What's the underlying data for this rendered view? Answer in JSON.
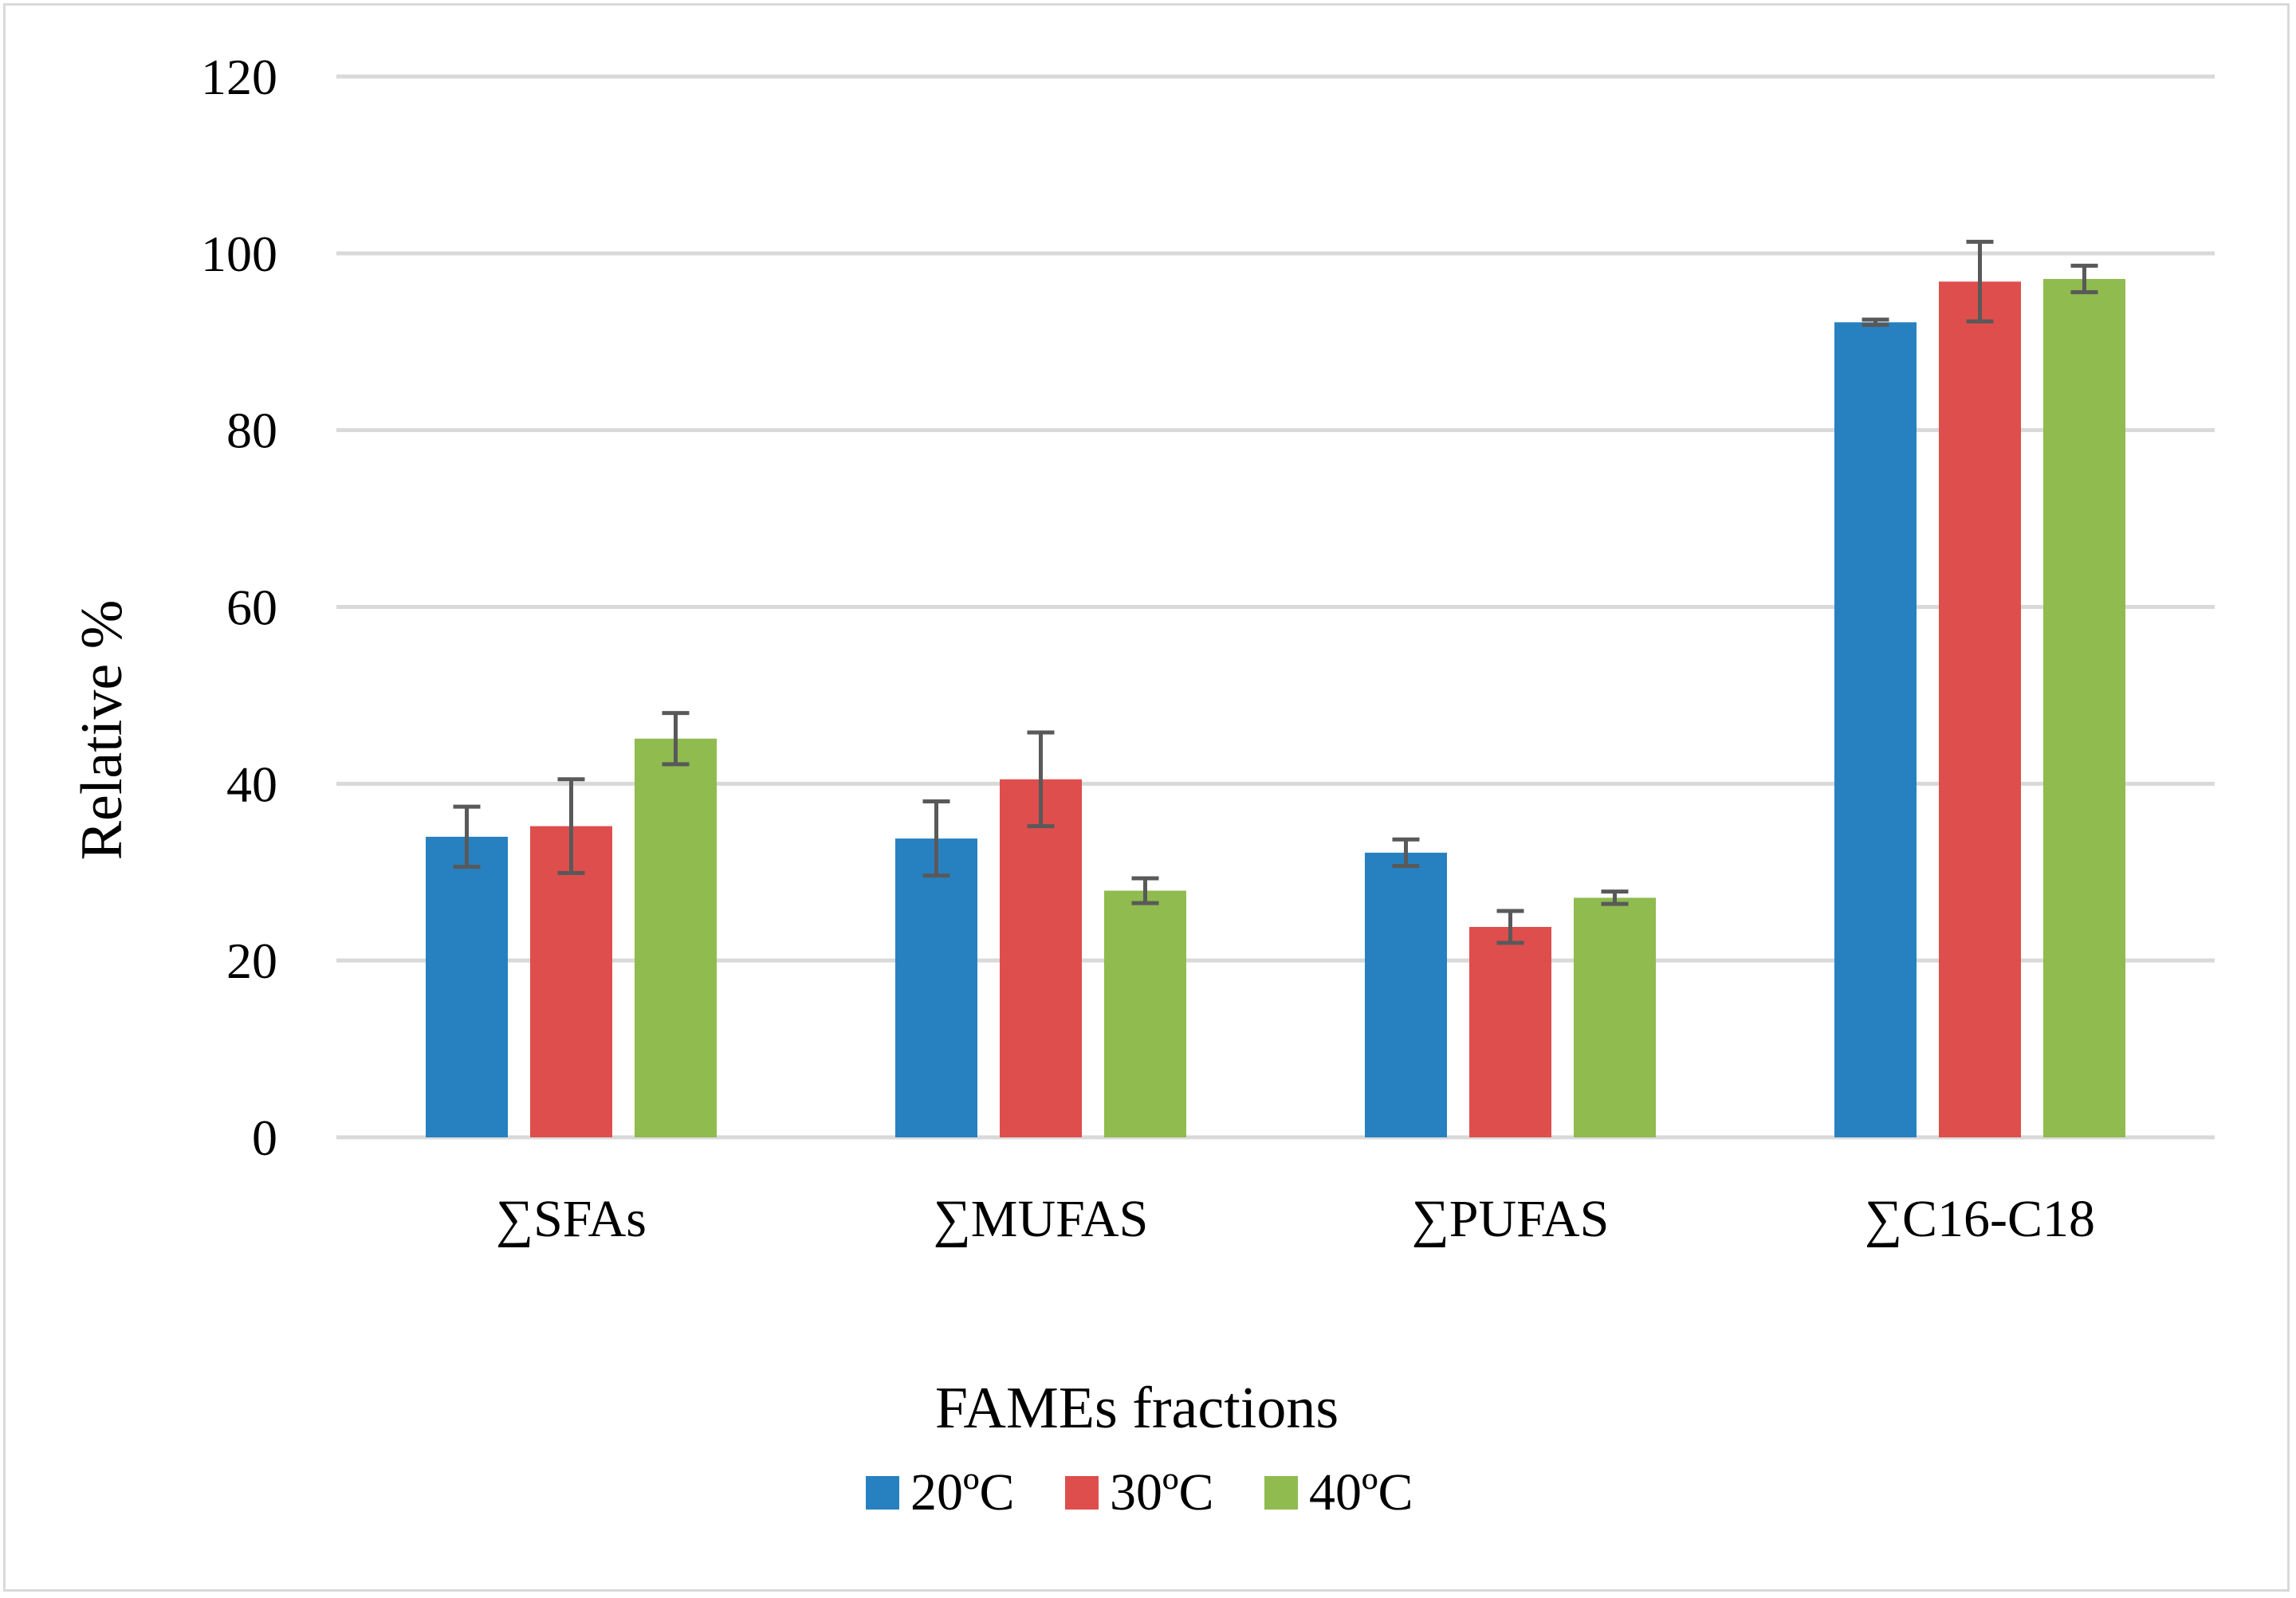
{
  "chart_data": {
    "type": "bar",
    "title": "",
    "xlabel": "FAMEs fractions",
    "ylabel": "Relative %",
    "ylim": [
      0,
      120
    ],
    "yticks": [
      0,
      20,
      40,
      60,
      80,
      100,
      120
    ],
    "grid": true,
    "legend_position": "bottom",
    "categories": [
      "∑SFAs",
      "∑MUFAS",
      "∑PUFAS",
      "∑C16-C18"
    ],
    "series": [
      {
        "name": "20ºC",
        "color": "#2781c0",
        "values": [
          34.0,
          33.8,
          32.2,
          92.2
        ],
        "errors": [
          3.4,
          4.2,
          1.5,
          0.3
        ]
      },
      {
        "name": "30ºC",
        "color": "#de4e4c",
        "values": [
          35.2,
          40.5,
          23.8,
          96.8
        ],
        "errors": [
          5.3,
          5.3,
          1.8,
          4.5
        ]
      },
      {
        "name": "40ºC",
        "color": "#8fbb4f",
        "values": [
          45.1,
          27.9,
          27.1,
          97.1
        ],
        "errors": [
          2.9,
          1.4,
          0.7,
          1.5
        ]
      }
    ],
    "error_bar_color": "#595959",
    "grid_color": "#d9d9d9"
  }
}
